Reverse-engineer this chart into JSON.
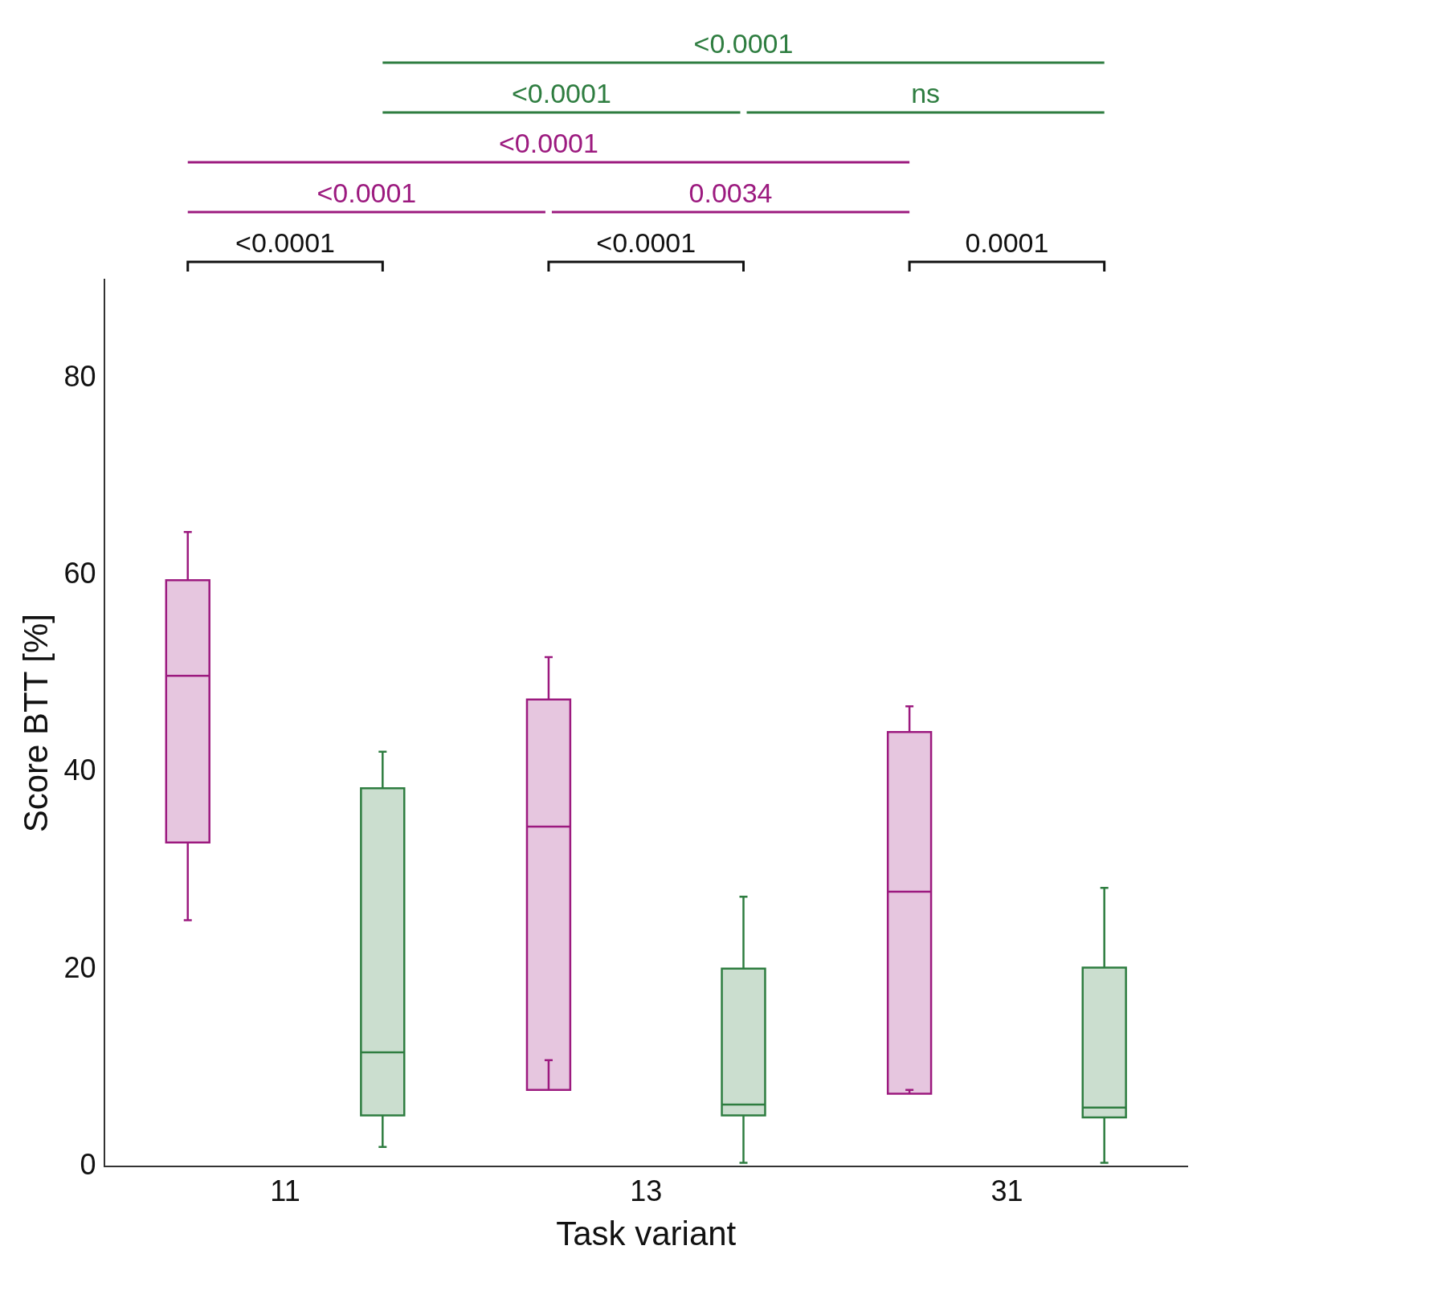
{
  "chart_data": {
    "type": "box",
    "xlabel": "Task variant",
    "ylabel": "Score BTT [%]",
    "categories": [
      "11",
      "13",
      "31"
    ],
    "ylim": [
      0,
      90
    ],
    "yticks": [
      0,
      20,
      40,
      60,
      80
    ],
    "grid": false,
    "legend": false,
    "series": [
      {
        "color": "#9c1a7f",
        "boxes": [
          {
            "low": 25.0,
            "q1": 32.9,
            "median": 49.8,
            "q3": 59.5,
            "high": 64.4
          },
          {
            "low": 10.8,
            "q1": 7.8,
            "median": 34.5,
            "q3": 47.4,
            "high": 51.7
          },
          {
            "low": 7.8,
            "q1": 7.4,
            "median": 27.9,
            "q3": 44.1,
            "high": 46.7
          }
        ]
      },
      {
        "color": "#2e7d40",
        "boxes": [
          {
            "low": 2.0,
            "q1": 5.2,
            "median": 11.6,
            "q3": 38.4,
            "high": 42.1
          },
          {
            "low": 0.4,
            "q1": 5.2,
            "median": 6.3,
            "q3": 20.1,
            "high": 27.4
          },
          {
            "low": 0.4,
            "q1": 5.0,
            "median": 6.0,
            "q3": 20.2,
            "high": 28.3
          }
        ]
      }
    ],
    "annotations": [
      "<0.0001",
      "<0.0001",
      "0.0001",
      "<0.0001",
      "0.0034",
      "<0.0001",
      "<0.0001",
      "ns",
      "<0.0001"
    ]
  }
}
